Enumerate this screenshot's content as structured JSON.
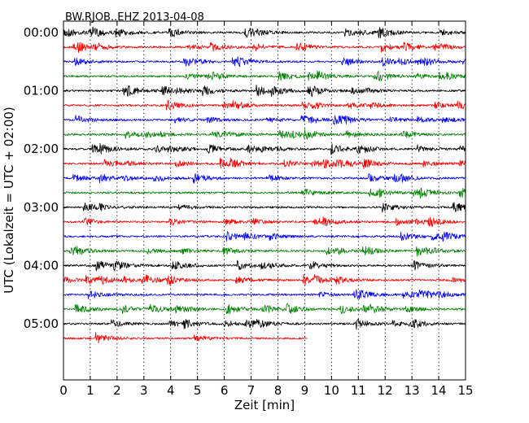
{
  "chart_data": {
    "type": "line",
    "title": "BW.RJOB..EHZ 2013-04-08",
    "xlabel": "Zeit  [min]",
    "ylabel": "UTC (Lokalzeit = UTC + 02:00)",
    "xlim": [
      0,
      15
    ],
    "x_ticks": [
      "0",
      "1",
      "2",
      "3",
      "4",
      "5",
      "6",
      "7",
      "8",
      "9",
      "10",
      "11",
      "12",
      "13",
      "14",
      "15"
    ],
    "y_tick_labels": [
      "00:00",
      "01:00",
      "02:00",
      "03:00",
      "04:00",
      "05:00"
    ],
    "grid": "vertical dotted",
    "colors": [
      "#000000",
      "#ff0000",
      "#0000ff",
      "#008000"
    ],
    "trace_count": 22,
    "last_trace_end_min": 9.1
  }
}
